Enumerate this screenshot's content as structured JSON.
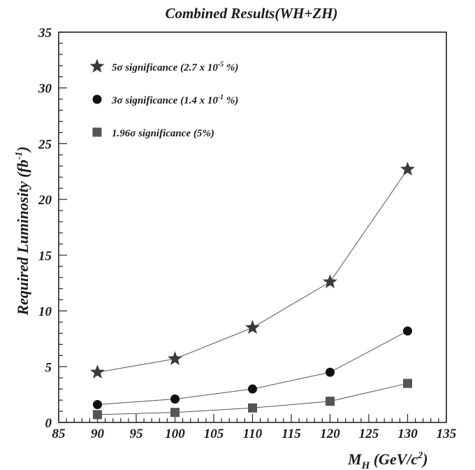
{
  "chart_data": {
    "type": "scatter",
    "title": "Combined Results(WH+ZH)",
    "xlabel": "M",
    "xlabel_sub": "H",
    "xlabel_unit": "(GeV/c",
    "xlabel_unit_sup": "2",
    "xlabel_unit_close": ")",
    "ylabel": "Required Luminosity (fb",
    "ylabel_sup": "-1",
    "ylabel_close": ")",
    "xlim": [
      85,
      135
    ],
    "ylim": [
      0,
      35
    ],
    "xticks": [
      85,
      90,
      95,
      100,
      105,
      110,
      115,
      120,
      125,
      130,
      135
    ],
    "yticks": [
      0,
      5,
      10,
      15,
      20,
      25,
      30,
      35
    ],
    "grid": false,
    "legend_position": "top-left",
    "x": [
      90,
      100,
      110,
      120,
      130
    ],
    "series": [
      {
        "name": "5σ significance (2.7 x 10",
        "name_sup": "-5",
        "name_close": " %)",
        "marker": "star",
        "color": "#3a3a3a",
        "values": [
          4.5,
          5.7,
          8.5,
          12.6,
          22.7
        ]
      },
      {
        "name": "3σ significance (1.4 x 10",
        "name_sup": "-1",
        "name_close": " %)",
        "marker": "circle",
        "color": "#111111",
        "values": [
          1.6,
          2.1,
          3.0,
          4.5,
          8.2
        ]
      },
      {
        "name": "1.96σ significance (5%)",
        "name_sup": "",
        "name_close": "",
        "marker": "square",
        "color": "#555555",
        "values": [
          0.7,
          0.9,
          1.3,
          1.9,
          3.5
        ]
      }
    ]
  }
}
